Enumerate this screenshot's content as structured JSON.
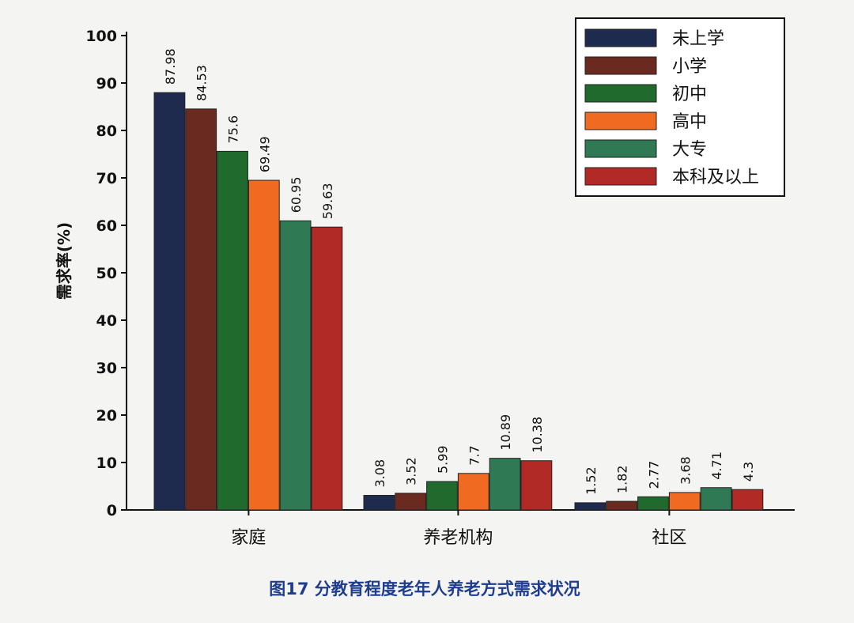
{
  "chart_data": {
    "type": "bar",
    "ylabel": "需求率(%)",
    "ylim": [
      0,
      100
    ],
    "yticks": [
      0,
      10,
      20,
      30,
      40,
      50,
      60,
      70,
      80,
      90,
      100
    ],
    "categories": [
      "家庭",
      "养老机构",
      "社区"
    ],
    "series": [
      {
        "name": "未上学",
        "color": "#1f2a4f",
        "values": [
          87.98,
          3.08,
          1.52
        ]
      },
      {
        "name": "小学",
        "color": "#6b2a20",
        "values": [
          84.53,
          3.52,
          1.82
        ]
      },
      {
        "name": "初中",
        "color": "#1f6a2c",
        "values": [
          75.6,
          5.99,
          2.77
        ]
      },
      {
        "name": "高中",
        "color": "#f06a22",
        "values": [
          69.49,
          7.7,
          3.68
        ]
      },
      {
        "name": "大专",
        "color": "#2f7a55",
        "values": [
          60.95,
          10.89,
          4.71
        ]
      },
      {
        "name": "本科及以上",
        "color": "#b22a26",
        "values": [
          59.63,
          10.38,
          4.3
        ]
      }
    ],
    "legend_position": "top-right",
    "grid": false
  },
  "caption": "图17 分教育程度老年人养老方式需求状况"
}
